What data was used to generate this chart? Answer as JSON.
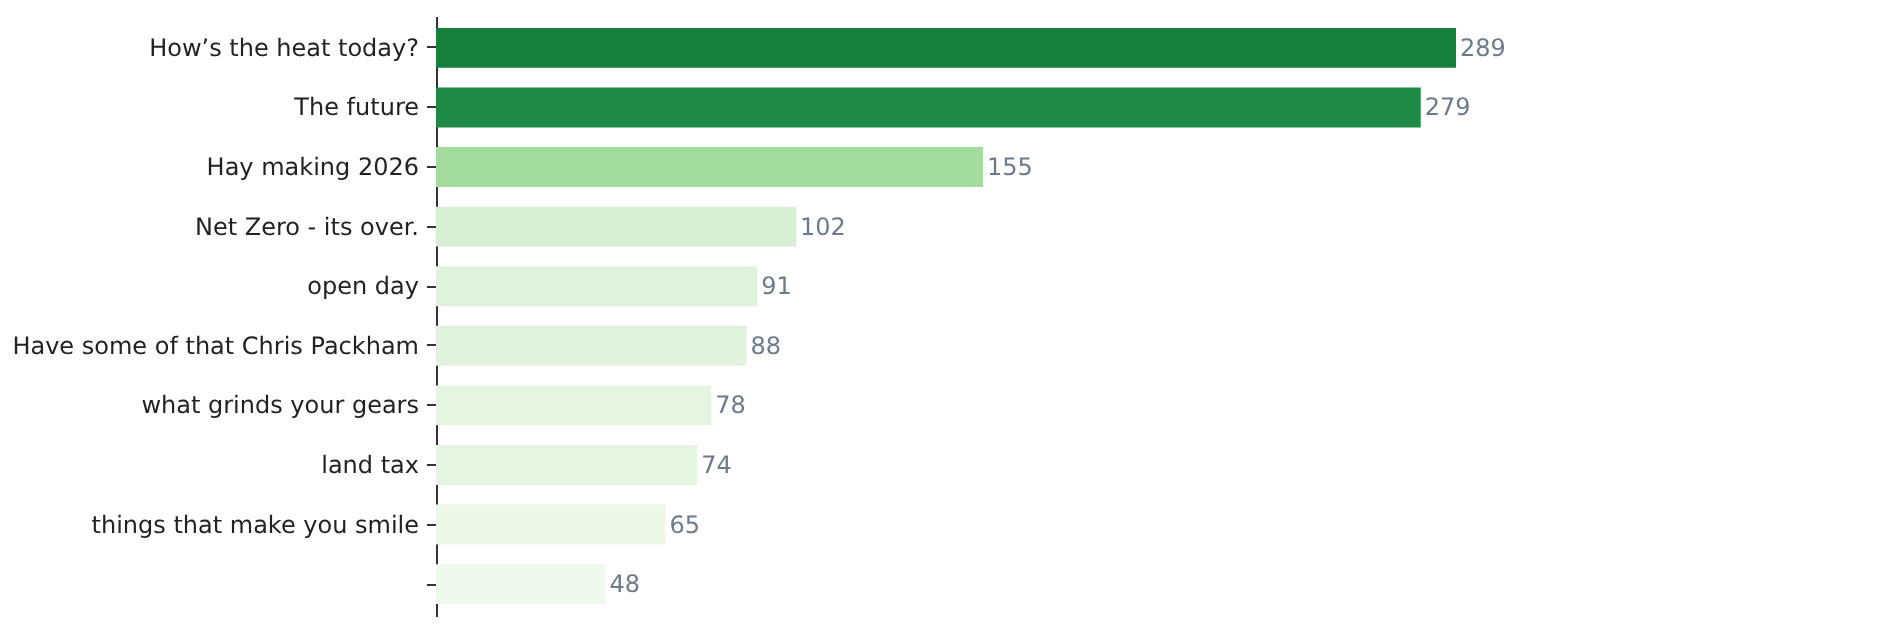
{
  "chart_data": {
    "type": "bar",
    "orientation": "horizontal",
    "data_labels": true,
    "categories": [
      "How’s the heat today?",
      "The future",
      "Hay making 2026",
      "Net Zero - its over.",
      "open day",
      "Have some of that Chris Packham",
      "what grinds your gears",
      "land tax",
      "things that make you smile",
      null
    ],
    "values": [
      289,
      279,
      155,
      102,
      91,
      88,
      78,
      74,
      65,
      48
    ],
    "colors": [
      "#157f3b",
      "#1e8a45",
      "#a3dc9e",
      "#d7efd3",
      "#dff2dc",
      "#e0f2dd",
      "#e5f5e1",
      "#e6f5e2",
      "#edf8e9",
      "#f0f9ed"
    ]
  }
}
